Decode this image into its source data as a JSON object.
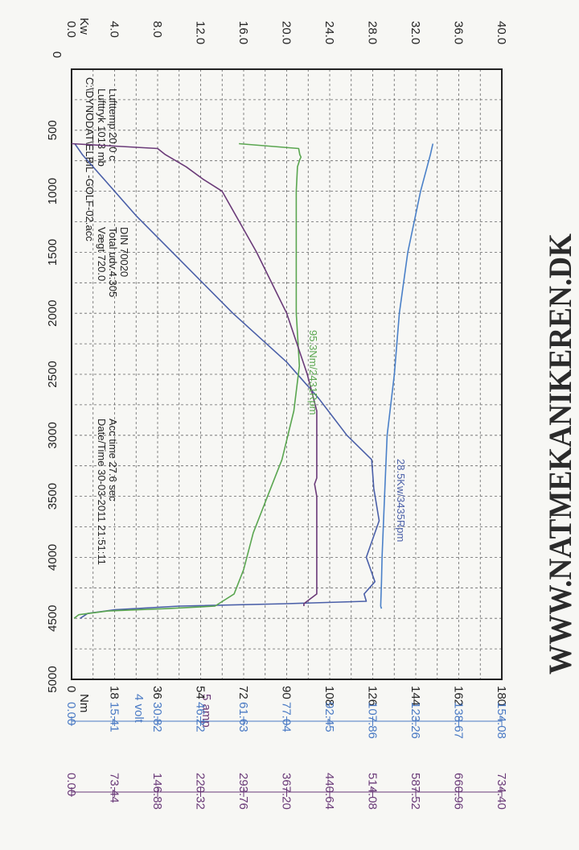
{
  "colors": {
    "power": "#4a5fa8",
    "torque": "#5aa650",
    "voltage": "#4a80c8",
    "current": "#6a3a78",
    "grid": "#666666",
    "text": "#222222",
    "volt_scale": "#4a7ac4",
    "amp_scale": "#6a3a78"
  },
  "header": {
    "file": "C:\\DYNODAT\\ELBIL -GOLF-02.acc",
    "luft_trk": "Lufttryk  1013 mb",
    "luft_temp": "Lufttemp  20.0 c",
    "vaegt": "Vægt    720.0",
    "total": "Total udv.4.305",
    "din": "DIN 70020",
    "datetime": "Date/Time 30-03-2011 21:51:11",
    "acc_time": "Acc time  27.6 sec"
  },
  "watermark": "WWW.NATMEKANIKEREN.DK",
  "chart_data": {
    "type": "line",
    "xlabel": "",
    "xlim": [
      0,
      5000
    ],
    "x_ticks": [
      "0",
      "500",
      "1000",
      "1500",
      "2000",
      "2500",
      "3000",
      "3500",
      "4000",
      "4500",
      "5000"
    ],
    "axes": {
      "kw": {
        "label": "Kw",
        "range": [
          0,
          40
        ],
        "ticks": [
          "0.0",
          "4.0",
          "8.0",
          "12.0",
          "16.0",
          "20.0",
          "24.0",
          "28.0",
          "32.0",
          "36.0",
          "40.0"
        ]
      },
      "nm": {
        "label": "Nm",
        "range": [
          0,
          180
        ],
        "ticks": [
          "0",
          "18",
          "36",
          "54",
          "72",
          "90",
          "108",
          "126",
          "144",
          "162",
          "180"
        ]
      },
      "volt": {
        "label": "4 volt",
        "range": [
          0,
          154.08
        ],
        "ticks": [
          "0.00",
          "15.41",
          "30.82",
          "46.22",
          "61.63",
          "77.04",
          "92.45",
          "107.86",
          "123.26",
          "138.67",
          "154.08"
        ]
      },
      "amp": {
        "label": "5 amp",
        "range": [
          0,
          734.4
        ],
        "ticks": [
          "0.00",
          "73.44",
          "146.88",
          "220.32",
          "293.76",
          "367.20",
          "440.64",
          "514.08",
          "587.52",
          "660.96",
          "734.40"
        ]
      }
    },
    "annotations": [
      {
        "text": "95.3Nm/2431Rpm",
        "series": "Torque"
      },
      {
        "text": "28.5Kw/3435Rpm",
        "series": "Power"
      }
    ],
    "series": [
      {
        "axis": "kw",
        "color": "#4a5fa8",
        "x": [
          610,
          700,
          900,
          1200,
          1600,
          2000,
          2400,
          2700,
          3000,
          3200,
          3435,
          3700,
          4000,
          4200,
          4300,
          4360,
          4380,
          4400,
          4430,
          4460,
          4500
        ],
        "values": [
          0.3,
          1.0,
          3.0,
          6.0,
          10.5,
          15.0,
          20.0,
          23.0,
          26.0,
          27.5,
          28.5,
          28.2,
          27.8,
          27.8,
          27.6,
          27.4,
          20.0,
          10.0,
          4.0,
          1.5,
          0.8
        ]
      },
      {
        "axis": "nm",
        "color": "#5aa650",
        "x": [
          610,
          650,
          700,
          720,
          740,
          800,
          1000,
          1500,
          2000,
          2431,
          2800,
          3200,
          3500,
          3800,
          4100,
          4300,
          4400,
          4420,
          4440,
          4470,
          4500
        ],
        "values": [
          70,
          95,
          95.5,
          96,
          95.5,
          94.5,
          94,
          94,
          94,
          95.3,
          93,
          88,
          82,
          76,
          72,
          68,
          60,
          40,
          15,
          3,
          1
        ]
      },
      {
        "axis": "volt",
        "color": "#4a80c8",
        "x": [
          610,
          700,
          1000,
          1500,
          2000,
          2500,
          3000,
          3500,
          4000,
          4200,
          4400,
          4420
        ],
        "values": [
          129.4,
          128.5,
          125.0,
          120.4,
          117.4,
          115.6,
          113.0,
          112.1,
          111.2,
          111.0,
          110.7,
          111.0
        ]
      },
      {
        "axis": "amp",
        "color": "#6a3a78",
        "x": [
          610,
          650,
          700,
          800,
          900,
          1000,
          1500,
          2000,
          2500,
          2800,
          3000,
          3200,
          3350,
          3400,
          3500,
          3700,
          3900,
          4100,
          4300,
          4380,
          4400
        ],
        "values": [
          0,
          146.9,
          160.0,
          195.8,
          224.0,
          257.0,
          315.8,
          367.2,
          402.4,
          418.6,
          418.6,
          418.6,
          418.6,
          414.9,
          418.6,
          418.6,
          418.6,
          418.6,
          418.6,
          396.6,
          396.6
        ]
      }
    ]
  }
}
